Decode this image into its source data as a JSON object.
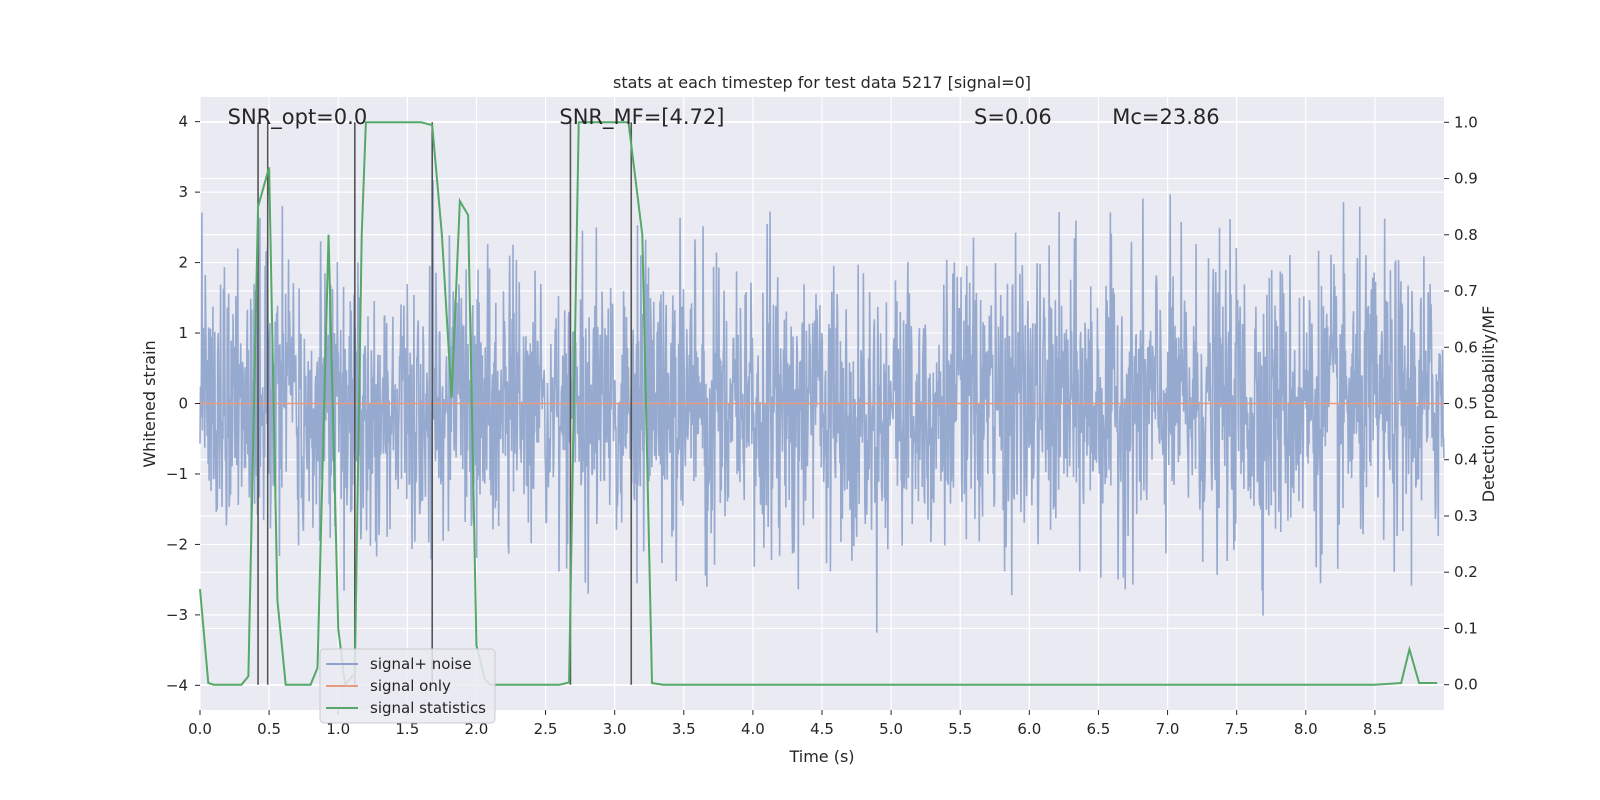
{
  "chart_data": {
    "type": "line",
    "title": "stats at each timestep for test data 5217 [signal=0]",
    "xlabel": "Time (s)",
    "ylabel": "Whitened strain",
    "y2label": "Detection probability/MF",
    "xlim": [
      0.0,
      9.0
    ],
    "ylim": [
      -4.35,
      4.35
    ],
    "y2lim": [
      -0.045,
      1.045
    ],
    "x_ticks": [
      "0.0",
      "0.5",
      "1.0",
      "1.5",
      "2.0",
      "2.5",
      "3.0",
      "3.5",
      "4.0",
      "4.5",
      "5.0",
      "5.5",
      "6.0",
      "6.5",
      "7.0",
      "7.5",
      "8.0",
      "8.5"
    ],
    "y_ticks": [
      "4",
      "3",
      "2",
      "1",
      "0",
      "−1",
      "−2",
      "−3",
      "−4"
    ],
    "y2_ticks": [
      "1.0",
      "0.9",
      "0.8",
      "0.7",
      "0.6",
      "0.5",
      "0.4",
      "0.3",
      "0.2",
      "0.1",
      "0.0"
    ],
    "grid": true,
    "legend_position": "lower-left",
    "annotations": [
      {
        "text": "SNR_opt=0.0",
        "x": 0.2
      },
      {
        "text": "SNR_MF=[4.72]",
        "x": 2.6
      },
      {
        "text": "S=0.06",
        "x": 5.6
      },
      {
        "text": "Mc=23.86",
        "x": 6.6
      }
    ],
    "series": [
      {
        "name": "signal+ noise",
        "color": "#8da2cb",
        "axis": "left",
        "note": "whitened strain noise, sampled densely from 0.0 to 9.0 s, values roughly within −3.5 to 3.7"
      },
      {
        "name": "signal only",
        "color": "#e59b82",
        "axis": "left",
        "x": [
          0.0,
          9.0
        ],
        "y": [
          0.0,
          0.0
        ]
      },
      {
        "name": "signal statistics",
        "color": "#55a868",
        "axis": "right",
        "x": [
          0.0,
          0.06,
          0.1,
          0.2,
          0.3,
          0.35,
          0.42,
          0.5,
          0.56,
          0.62,
          0.7,
          0.8,
          0.85,
          0.93,
          1.0,
          1.05,
          1.12,
          1.17,
          1.2,
          1.3,
          1.4,
          1.5,
          1.6,
          1.68,
          1.75,
          1.82,
          1.88,
          1.94,
          2.0,
          2.06,
          2.1,
          2.2,
          2.4,
          2.6,
          2.67,
          2.74,
          2.8,
          2.9,
          3.0,
          3.1,
          3.2,
          3.27,
          3.35,
          3.5,
          4.0,
          5.0,
          6.0,
          7.0,
          8.0,
          8.5,
          8.69,
          8.75,
          8.82,
          8.95
        ],
        "y": [
          0.17,
          0.003,
          0.0,
          0.0,
          0.0,
          0.015,
          0.85,
          0.92,
          0.15,
          0.0,
          0.0,
          0.0,
          0.03,
          0.8,
          0.1,
          0.0,
          0.02,
          0.8,
          1.0,
          1.0,
          1.0,
          1.0,
          1.0,
          0.995,
          0.8,
          0.51,
          0.86,
          0.835,
          0.07,
          0.01,
          0.0,
          0.0,
          0.0,
          0.0,
          0.004,
          1.0,
          1.0,
          1.0,
          1.0,
          1.0,
          0.8,
          0.003,
          0.0,
          0.0,
          0.0,
          0.0,
          0.0,
          0.0,
          0.0,
          0.0,
          0.003,
          0.063,
          0.003,
          0.003
        ]
      }
    ],
    "vertical_markers": [
      0.42,
      0.49,
      1.12,
      1.68,
      2.68,
      3.12
    ],
    "colors": {
      "background": "#eaeaf2",
      "grid": "#ffffff",
      "marker": "#555555"
    }
  }
}
